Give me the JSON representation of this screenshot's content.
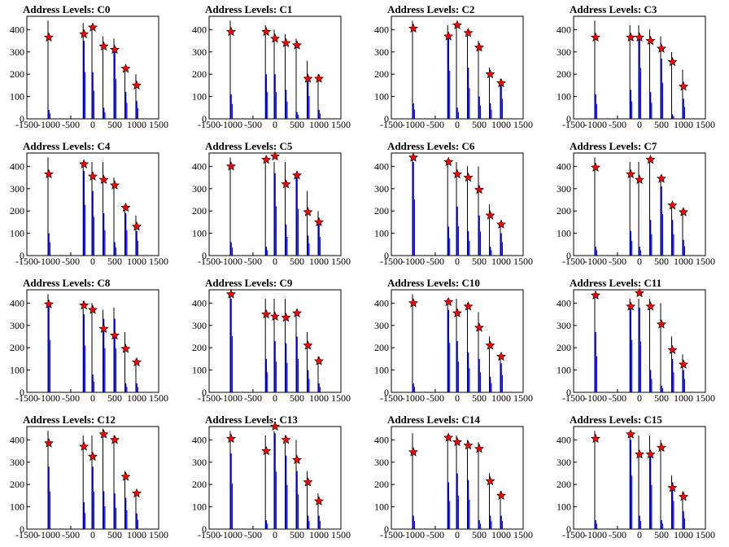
{
  "chart_data": [
    {
      "type": "bar",
      "title": "Address Levels: C0",
      "xlim": [
        -1500,
        1500
      ],
      "yticks": [
        0,
        100,
        200,
        300,
        400
      ],
      "xticks": [
        -1500,
        -1000,
        -500,
        0,
        500,
        1000,
        1500
      ],
      "x": [
        -1000,
        -200,
        0,
        250,
        500,
        750,
        1000
      ],
      "black_peak": [
        440,
        430,
        420,
        370,
        360,
        230,
        200
      ],
      "blue_peak": [
        40,
        350,
        210,
        50,
        300,
        120,
        80
      ],
      "star": [
        365,
        380,
        410,
        325,
        310,
        225,
        150
      ]
    },
    {
      "type": "bar",
      "title": "Address Levels: C1",
      "xlim": [
        -1500,
        1500
      ],
      "yticks": [
        0,
        100,
        200,
        300,
        400
      ],
      "xticks": [
        -1500,
        -1000,
        -500,
        0,
        500,
        1000,
        1500
      ],
      "x": [
        -1000,
        -200,
        0,
        250,
        500,
        750,
        1000
      ],
      "black_peak": [
        440,
        420,
        400,
        380,
        360,
        260,
        200
      ],
      "blue_peak": [
        110,
        200,
        200,
        130,
        30,
        170,
        40
      ],
      "star": [
        390,
        390,
        360,
        340,
        330,
        180,
        180
      ]
    },
    {
      "type": "bar",
      "title": "Address Levels: C2",
      "xlim": [
        -1500,
        1500
      ],
      "yticks": [
        0,
        100,
        200,
        300,
        400
      ],
      "xticks": [
        -1500,
        -1000,
        -500,
        0,
        500,
        1000,
        1500
      ],
      "x": [
        -1000,
        -200,
        0,
        250,
        500,
        750,
        1000
      ],
      "black_peak": [
        440,
        420,
        430,
        400,
        350,
        230,
        180
      ],
      "blue_peak": [
        70,
        360,
        50,
        230,
        100,
        70,
        150
      ],
      "star": [
        405,
        370,
        420,
        385,
        320,
        200,
        160
      ]
    },
    {
      "type": "bar",
      "title": "Address Levels: C3",
      "xlim": [
        -1500,
        1500
      ],
      "yticks": [
        0,
        100,
        200,
        300,
        400
      ],
      "xticks": [
        -1500,
        -1000,
        -500,
        0,
        500,
        1000,
        1500
      ],
      "x": [
        -1000,
        -200,
        0,
        250,
        500,
        750,
        1000
      ],
      "black_peak": [
        440,
        420,
        420,
        400,
        370,
        300,
        220
      ],
      "blue_peak": [
        110,
        130,
        380,
        120,
        270,
        20,
        90
      ],
      "star": [
        365,
        365,
        365,
        350,
        315,
        255,
        145
      ]
    },
    {
      "type": "bar",
      "title": "Address Levels: C4",
      "xlim": [
        -1500,
        1500
      ],
      "yticks": [
        0,
        100,
        200,
        300,
        400
      ],
      "xticks": [
        -1500,
        -1000,
        -500,
        0,
        500,
        1000,
        1500
      ],
      "x": [
        -1000,
        -200,
        0,
        250,
        500,
        750,
        1000
      ],
      "black_peak": [
        440,
        420,
        420,
        420,
        350,
        230,
        180
      ],
      "blue_peak": [
        100,
        380,
        290,
        190,
        60,
        190,
        110
      ],
      "star": [
        365,
        410,
        355,
        340,
        315,
        215,
        130
      ]
    },
    {
      "type": "bar",
      "title": "Address Levels: C5",
      "xlim": [
        -1500,
        1500
      ],
      "yticks": [
        0,
        100,
        200,
        300,
        400
      ],
      "xticks": [
        -1500,
        -1000,
        -500,
        0,
        500,
        1000,
        1500
      ],
      "x": [
        -1000,
        -200,
        0,
        250,
        500,
        750,
        1000
      ],
      "black_peak": [
        440,
        420,
        420,
        420,
        370,
        290,
        200
      ],
      "blue_peak": [
        60,
        40,
        370,
        140,
        350,
        90,
        140
      ],
      "star": [
        400,
        430,
        445,
        320,
        360,
        195,
        150
      ]
    },
    {
      "type": "bar",
      "title": "Address Levels: C6",
      "xlim": [
        -1500,
        1500
      ],
      "yticks": [
        0,
        100,
        200,
        300,
        400
      ],
      "xticks": [
        -1500,
        -1000,
        -500,
        0,
        500,
        1000,
        1500
      ],
      "x": [
        -1000,
        -200,
        0,
        250,
        500,
        750,
        1000
      ],
      "black_peak": [
        450,
        420,
        420,
        400,
        400,
        230,
        150
      ],
      "blue_peak": [
        420,
        130,
        220,
        110,
        180,
        40,
        100
      ],
      "star": [
        440,
        420,
        365,
        350,
        295,
        180,
        140
      ]
    },
    {
      "type": "bar",
      "title": "Address Levels: C7",
      "xlim": [
        -1500,
        1500
      ],
      "yticks": [
        0,
        100,
        200,
        300,
        400
      ],
      "xticks": [
        -1500,
        -1000,
        -500,
        0,
        500,
        1000,
        1500
      ],
      "x": [
        -1000,
        -200,
        0,
        250,
        500,
        750,
        1000
      ],
      "black_peak": [
        440,
        420,
        420,
        420,
        360,
        230,
        210
      ],
      "blue_peak": [
        40,
        110,
        40,
        160,
        310,
        160,
        70
      ],
      "star": [
        395,
        365,
        340,
        430,
        345,
        225,
        195
      ]
    },
    {
      "type": "bar",
      "title": "Address Levels: C8",
      "xlim": [
        -1500,
        1500
      ],
      "yticks": [
        0,
        100,
        200,
        300,
        400
      ],
      "xticks": [
        -1500,
        -1000,
        -500,
        0,
        500,
        1000,
        1500
      ],
      "x": [
        -1000,
        -200,
        0,
        250,
        500,
        750,
        1000
      ],
      "black_peak": [
        440,
        410,
        400,
        370,
        380,
        270,
        150
      ],
      "blue_peak": [
        390,
        350,
        80,
        330,
        330,
        40,
        40
      ],
      "star": [
        395,
        390,
        370,
        285,
        255,
        195,
        135
      ]
    },
    {
      "type": "bar",
      "title": "Address Levels: C9",
      "xlim": [
        -1500,
        1500
      ],
      "yticks": [
        0,
        100,
        200,
        300,
        400
      ],
      "xticks": [
        -1500,
        -1000,
        -500,
        0,
        500,
        1000,
        1500
      ],
      "x": [
        -1000,
        -200,
        0,
        250,
        500,
        750,
        1000
      ],
      "black_peak": [
        440,
        420,
        420,
        420,
        360,
        270,
        160
      ],
      "blue_peak": [
        420,
        150,
        230,
        220,
        250,
        100,
        40
      ],
      "star": [
        440,
        350,
        340,
        335,
        355,
        210,
        140
      ]
    },
    {
      "type": "bar",
      "title": "Address Levels: C10",
      "xlim": [
        -1500,
        1500
      ],
      "yticks": [
        0,
        100,
        200,
        300,
        400
      ],
      "xticks": [
        -1500,
        -1000,
        -500,
        0,
        500,
        1000,
        1500
      ],
      "x": [
        -1000,
        -200,
        0,
        250,
        500,
        750,
        1000
      ],
      "black_peak": [
        440,
        420,
        420,
        400,
        360,
        250,
        170
      ],
      "blue_peak": [
        40,
        370,
        230,
        180,
        150,
        70,
        130
      ],
      "star": [
        400,
        405,
        355,
        385,
        290,
        210,
        160
      ]
    },
    {
      "type": "bar",
      "title": "Address Levels: C11",
      "xlim": [
        -1500,
        1500
      ],
      "yticks": [
        0,
        100,
        200,
        300,
        400
      ],
      "xticks": [
        -1500,
        -1000,
        -500,
        0,
        500,
        1000,
        1500
      ],
      "x": [
        -1000,
        -200,
        0,
        250,
        500,
        750,
        1000
      ],
      "black_peak": [
        440,
        420,
        420,
        420,
        400,
        250,
        170
      ],
      "blue_peak": [
        270,
        390,
        380,
        100,
        30,
        150,
        100
      ],
      "star": [
        435,
        385,
        445,
        385,
        305,
        190,
        125
      ]
    },
    {
      "type": "bar",
      "title": "Address Levels: C12",
      "xlim": [
        -1500,
        1500
      ],
      "yticks": [
        0,
        100,
        200,
        300,
        400
      ],
      "xticks": [
        -1500,
        -1000,
        -500,
        0,
        500,
        1000,
        1500
      ],
      "x": [
        -1000,
        -200,
        0,
        250,
        500,
        750,
        1000
      ],
      "black_peak": [
        440,
        420,
        420,
        450,
        420,
        260,
        170
      ],
      "blue_peak": [
        280,
        120,
        280,
        170,
        160,
        140,
        70
      ],
      "star": [
        385,
        370,
        325,
        425,
        400,
        235,
        160
      ]
    },
    {
      "type": "bar",
      "title": "Address Levels: C13",
      "xlim": [
        -1500,
        1500
      ],
      "yticks": [
        0,
        100,
        200,
        300,
        400
      ],
      "xticks": [
        -1500,
        -1000,
        -500,
        0,
        500,
        1000,
        1500
      ],
      "x": [
        -1000,
        -200,
        0,
        250,
        500,
        750,
        1000
      ],
      "black_peak": [
        440,
        420,
        440,
        420,
        400,
        260,
        160
      ],
      "blue_peak": [
        340,
        40,
        430,
        330,
        260,
        60,
        60
      ],
      "star": [
        405,
        350,
        460,
        400,
        310,
        210,
        125
      ]
    },
    {
      "type": "bar",
      "title": "Address Levels: C14",
      "xlim": [
        -1500,
        1500
      ],
      "yticks": [
        0,
        100,
        200,
        300,
        400
      ],
      "xticks": [
        -1500,
        -1000,
        -500,
        0,
        500,
        1000,
        1500
      ],
      "x": [
        -1000,
        -200,
        0,
        250,
        500,
        750,
        1000
      ],
      "black_peak": [
        430,
        420,
        420,
        400,
        390,
        250,
        170
      ],
      "blue_peak": [
        60,
        210,
        250,
        220,
        40,
        60,
        60
      ],
      "star": [
        345,
        410,
        390,
        375,
        360,
        215,
        150
      ]
    },
    {
      "type": "bar",
      "title": "Address Levels: C15",
      "xlim": [
        -1500,
        1500
      ],
      "yticks": [
        0,
        100,
        200,
        300,
        400
      ],
      "xticks": [
        -1500,
        -1000,
        -500,
        0,
        500,
        1000,
        1500
      ],
      "x": [
        -1000,
        -200,
        0,
        250,
        500,
        750,
        1000
      ],
      "black_peak": [
        440,
        440,
        420,
        420,
        400,
        240,
        170
      ],
      "blue_peak": [
        40,
        400,
        60,
        330,
        40,
        210,
        80
      ],
      "star": [
        405,
        425,
        335,
        335,
        365,
        185,
        145
      ]
    }
  ],
  "colors": {
    "black": "#000000",
    "blue": "#0000ff",
    "star": "#ff0000",
    "star_edge": "#000000",
    "frame": "#000000"
  }
}
